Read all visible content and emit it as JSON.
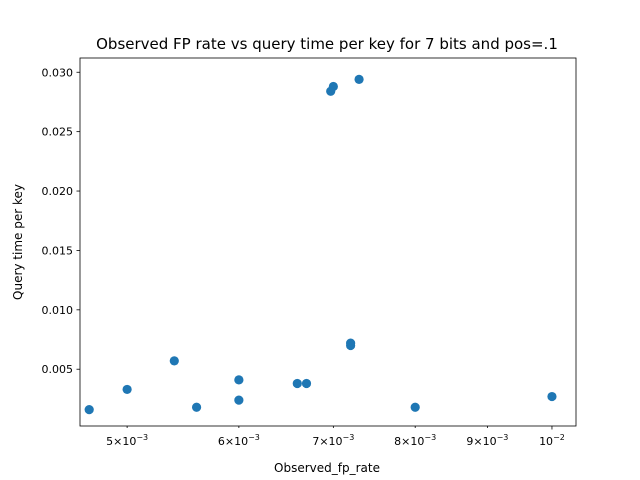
{
  "chart_data": {
    "type": "scatter",
    "title": "Observed FP rate vs query time per key for 7 bits and pos=.1",
    "xlabel": "Observed_fp_rate",
    "ylabel": "Query time per key",
    "xscale": "log",
    "xlim": [
      0.00463,
      0.0104
    ],
    "ylim": [
      0.00022,
      0.0312
    ],
    "x_ticks": [
      {
        "value": 0.005,
        "mantissa": "5",
        "exponent": "−3"
      },
      {
        "value": 0.006,
        "mantissa": "6",
        "exponent": "−3"
      },
      {
        "value": 0.007,
        "mantissa": "7",
        "exponent": "−3"
      },
      {
        "value": 0.008,
        "mantissa": "8",
        "exponent": "−3"
      },
      {
        "value": 0.009,
        "mantissa": "9",
        "exponent": "−3"
      },
      {
        "value": 0.01,
        "base_only": true,
        "exponent": "−2"
      }
    ],
    "y_ticks": [
      "0.005",
      "0.010",
      "0.015",
      "0.020",
      "0.025",
      "0.030"
    ],
    "grid": false,
    "marker_color": "#1f77b4",
    "points": [
      {
        "x": 0.0047,
        "y": 0.0016
      },
      {
        "x": 0.005,
        "y": 0.0033
      },
      {
        "x": 0.0054,
        "y": 0.0057
      },
      {
        "x": 0.0056,
        "y": 0.0018
      },
      {
        "x": 0.006,
        "y": 0.0041
      },
      {
        "x": 0.006,
        "y": 0.0024
      },
      {
        "x": 0.0066,
        "y": 0.0038
      },
      {
        "x": 0.0067,
        "y": 0.0038
      },
      {
        "x": 0.00697,
        "y": 0.0284
      },
      {
        "x": 0.007,
        "y": 0.0288
      },
      {
        "x": 0.0072,
        "y": 0.007
      },
      {
        "x": 0.0072,
        "y": 0.0072
      },
      {
        "x": 0.0073,
        "y": 0.0294
      },
      {
        "x": 0.008,
        "y": 0.0018
      },
      {
        "x": 0.01,
        "y": 0.0027
      }
    ]
  }
}
